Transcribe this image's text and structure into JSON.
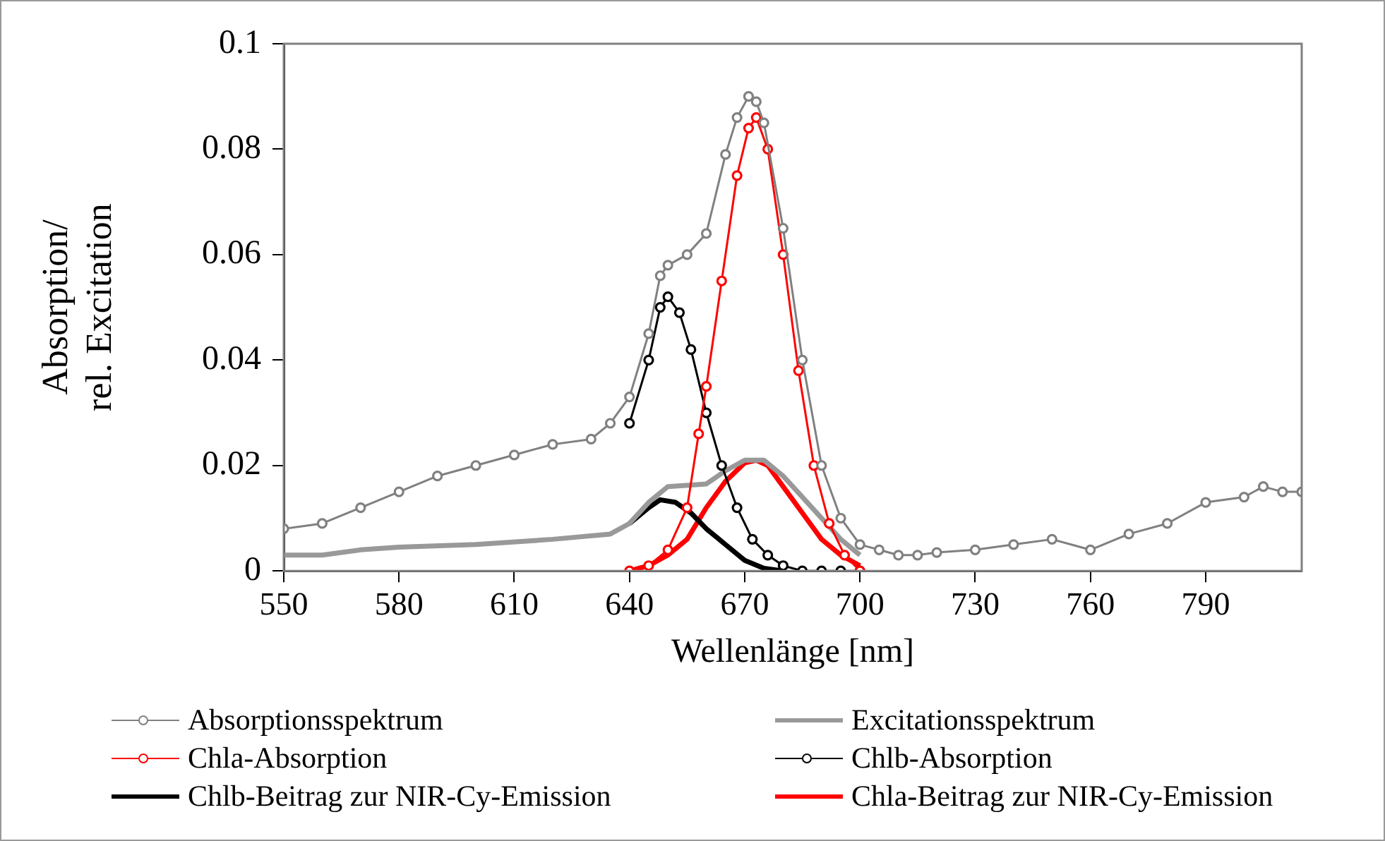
{
  "chart_data": {
    "type": "line",
    "xlabel": "Wellenlänge [nm]",
    "ylabel": "Absorption/ rel. Excitation",
    "xlim": [
      550,
      815
    ],
    "xticks": [
      550,
      580,
      610,
      640,
      670,
      700,
      730,
      760,
      790
    ],
    "ylim": [
      0,
      0.1
    ],
    "yticks": [
      0,
      0.02,
      0.04,
      0.06,
      0.08,
      0.1
    ],
    "grid": false,
    "legend": "bottom",
    "line_style": "solid",
    "series": [
      {
        "name": "Absorptionsspektrum",
        "color": "#808080",
        "marker": "circle",
        "x": [
          550,
          560,
          570,
          580,
          590,
          600,
          610,
          620,
          630,
          635,
          640,
          645,
          648,
          650,
          655,
          660,
          665,
          668,
          671,
          673,
          675,
          680,
          685,
          690,
          695,
          700,
          705,
          710,
          715,
          720,
          730,
          740,
          750,
          760,
          770,
          780,
          790,
          800,
          805,
          810,
          815
        ],
        "values": [
          0.008,
          0.009,
          0.012,
          0.015,
          0.018,
          0.02,
          0.022,
          0.024,
          0.025,
          0.028,
          0.033,
          0.045,
          0.056,
          0.058,
          0.06,
          0.064,
          0.079,
          0.086,
          0.09,
          0.089,
          0.085,
          0.065,
          0.04,
          0.02,
          0.01,
          0.005,
          0.004,
          0.003,
          0.003,
          0.0035,
          0.004,
          0.005,
          0.006,
          0.004,
          0.007,
          0.009,
          0.013,
          0.014,
          0.016,
          0.015,
          0.015
        ]
      },
      {
        "name": "Excitationsspektrum",
        "color": "#999999",
        "marker": "none",
        "x": [
          550,
          560,
          570,
          580,
          600,
          620,
          635,
          640,
          645,
          650,
          660,
          665,
          670,
          675,
          680,
          690,
          695,
          700
        ],
        "values": [
          0.003,
          0.003,
          0.004,
          0.0045,
          0.005,
          0.006,
          0.007,
          0.009,
          0.013,
          0.016,
          0.0165,
          0.019,
          0.021,
          0.021,
          0.018,
          0.01,
          0.006,
          0.003
        ]
      },
      {
        "name": "Chla-Absorption",
        "color": "#ff0000",
        "marker": "circle",
        "x": [
          640,
          645,
          650,
          655,
          658,
          660,
          664,
          668,
          671,
          673,
          676,
          680,
          684,
          688,
          692,
          696,
          700
        ],
        "values": [
          0,
          0.001,
          0.004,
          0.012,
          0.026,
          0.035,
          0.055,
          0.075,
          0.084,
          0.086,
          0.08,
          0.06,
          0.038,
          0.02,
          0.009,
          0.003,
          0
        ]
      },
      {
        "name": "Chlb-Absorption",
        "color": "#000000",
        "marker": "circle",
        "x": [
          640,
          645,
          648,
          650,
          653,
          656,
          660,
          664,
          668,
          672,
          676,
          680,
          685,
          690,
          695,
          700
        ],
        "values": [
          0.028,
          0.04,
          0.05,
          0.052,
          0.049,
          0.042,
          0.03,
          0.02,
          0.012,
          0.006,
          0.003,
          0.001,
          0,
          0,
          0,
          0
        ]
      },
      {
        "name": "Chlb-Beitrag zur NIR-Cy-Emission",
        "color": "#000000",
        "marker": "none",
        "x": [
          640,
          645,
          648,
          652,
          656,
          660,
          665,
          670,
          675,
          680
        ],
        "values": [
          0.009,
          0.012,
          0.0135,
          0.013,
          0.011,
          0.008,
          0.005,
          0.002,
          0.0005,
          0
        ]
      },
      {
        "name": "Chla-Beitrag zur NIR-Cy-Emission",
        "color": "#ff0000",
        "marker": "none",
        "x": [
          640,
          645,
          650,
          655,
          660,
          665,
          670,
          673,
          676,
          680,
          685,
          690,
          695,
          700
        ],
        "values": [
          0,
          0.001,
          0.003,
          0.006,
          0.012,
          0.017,
          0.0205,
          0.021,
          0.02,
          0.016,
          0.011,
          0.006,
          0.003,
          0.001
        ]
      }
    ]
  }
}
